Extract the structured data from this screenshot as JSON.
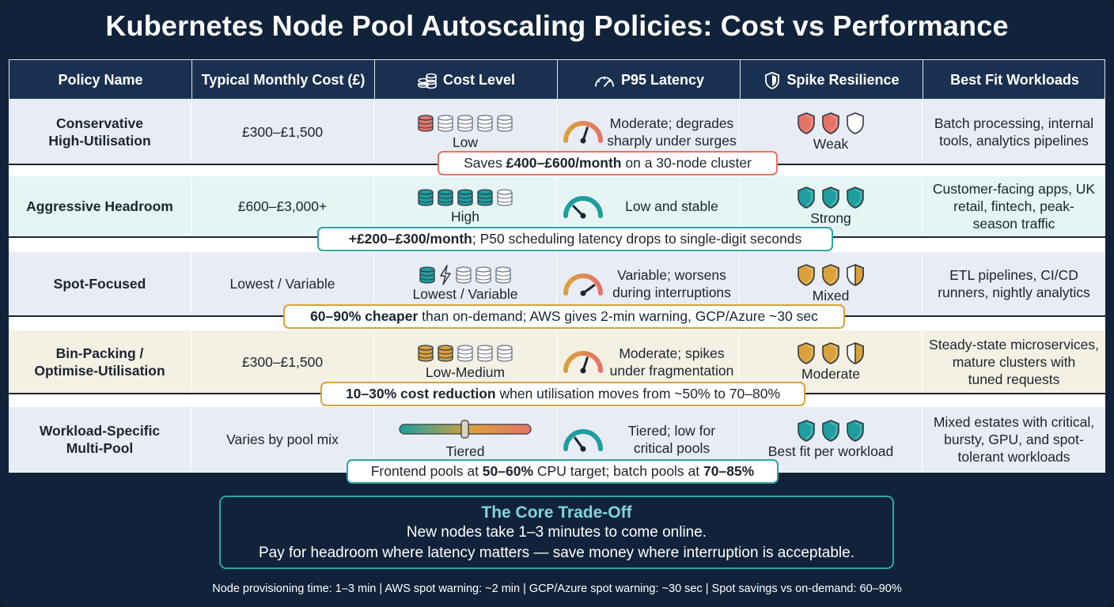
{
  "title": "Kubernetes Node Pool Autoscaling Policies: Cost vs Performance",
  "headers": {
    "policy": "Policy Name",
    "cost": "Typical Monthly Cost (£)",
    "cost_level": "Cost Level",
    "latency": "P95 Latency",
    "resilience": "Spike Resilience",
    "workloads": "Best Fit Workloads"
  },
  "header_icons": {
    "cost_level": "coin-stack-icon",
    "latency": "speedometer-icon",
    "resilience": "shield-icon"
  },
  "rows": [
    {
      "policy_l1": "Conservative",
      "policy_l2": "High-Utilisation",
      "cost": "£300–£1,500",
      "cost_level": "Low",
      "cost_level_filled": 1,
      "latency_l1": "Moderate; degrades",
      "latency_l2": "sharply under surges",
      "resilience": "Weak",
      "workloads_l1": "Batch processing, internal",
      "workloads_l2": "tools, analytics pipelines",
      "workloads_l3": "",
      "note_pre": "Saves ",
      "note_bold": "£400–£600/month",
      "note_post": " on a 30-node cluster",
      "note_color": "#e57368",
      "bg": "#e8ecf4"
    },
    {
      "policy_l1": "Aggressive Headroom",
      "policy_l2": "",
      "cost": "£600–£3,000+",
      "cost_level": "High",
      "cost_level_filled": 4,
      "latency_l1": "Low and stable",
      "latency_l2": "",
      "resilience": "Strong",
      "workloads_l1": "Customer-facing apps, UK",
      "workloads_l2": "retail, fintech, peak-",
      "workloads_l3": "season traffic",
      "note_pre": "",
      "note_bold": "+£200–£300/month",
      "note_post": "; P50 scheduling latency drops to single-digit seconds",
      "note_color": "#2aa7a7",
      "bg": "#e6f4f4"
    },
    {
      "policy_l1": "Spot-Focused",
      "policy_l2": "",
      "cost": "Lowest / Variable",
      "cost_level": "Lowest / Variable",
      "cost_level_filled": 1,
      "latency_l1": "Variable; worsens",
      "latency_l2": "during interruptions",
      "resilience": "Mixed",
      "workloads_l1": "ETL pipelines, CI/CD",
      "workloads_l2": "runners, nightly analytics",
      "workloads_l3": "",
      "note_pre": "",
      "note_bold": "60–90% cheaper",
      "note_post": " than on-demand; AWS gives 2-min warning, GCP/Azure ~30 sec",
      "note_color": "#d9a23a",
      "bg": "#e8ecf4"
    },
    {
      "policy_l1": "Bin-Packing /",
      "policy_l2": "Optimise-Utilisation",
      "cost": "£300–£1,500",
      "cost_level": "Low-Medium",
      "cost_level_filled": 2,
      "latency_l1": "Moderate; spikes",
      "latency_l2": "under fragmentation",
      "resilience": "Moderate",
      "workloads_l1": "Steady-state microservices,",
      "workloads_l2": "mature clusters with",
      "workloads_l3": "tuned requests",
      "note_pre": "",
      "note_bold": "10–30% cost reduction",
      "note_post": " when utilisation moves from ~50% to 70–80%",
      "note_color": "#d9a23a",
      "bg": "#f4f1e4"
    },
    {
      "policy_l1": "Workload-Specific",
      "policy_l2": "Multi-Pool",
      "cost": "Varies by pool mix",
      "cost_level": "Tiered",
      "cost_level_filled": 0,
      "latency_l1": "Tiered; low for",
      "latency_l2": "critical pools",
      "resilience": "Best fit per workload",
      "workloads_l1": "Mixed estates with critical,",
      "workloads_l2": "bursty, GPU, and spot-",
      "workloads_l3": "tolerant workloads",
      "note_pre": "Frontend pools at ",
      "note_bold": "50–60%",
      "note_mid": " CPU target; batch pools at ",
      "note_bold2": "70–85%",
      "note_post": "",
      "note_color": "#2aa7a7",
      "bg": "#e8ecf4"
    }
  ],
  "colors": {
    "red": "#e57368",
    "teal": "#1e9e9e",
    "gold": "#d9a23a",
    "navy": "#1a3050"
  },
  "core": {
    "title": "The Core Trade-Off",
    "line1": "New nodes take 1–3 minutes to come online.",
    "line2": "Pay for headroom where latency matters — save money where interruption is acceptable."
  },
  "footer": "Node provisioning time: 1–3 min | AWS spot warning: ~2 min | GCP/Azure spot warning: ~30 sec | Spot savings vs on-demand: 60–90%"
}
